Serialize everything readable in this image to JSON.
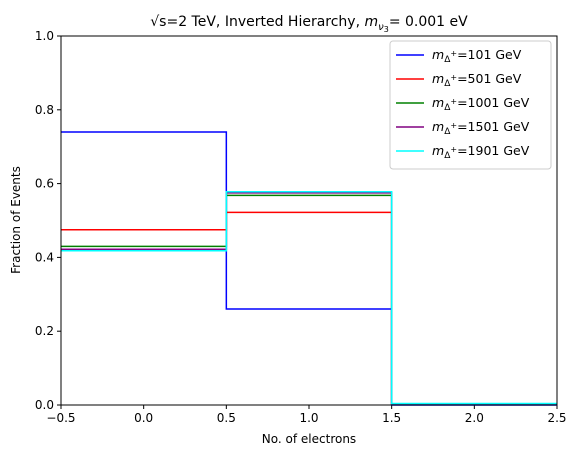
{
  "chart_data": {
    "type": "line",
    "drawstyle": "steps",
    "title": "√s=2 TeV, Inverted Hierarchy, m_ν3= 0.001 eV",
    "title_parts": {
      "prefix": "√s",
      "mid": "=2 TeV, Inverted Hierarchy, ",
      "mass_base": "m",
      "mass_sub": "ν",
      "mass_subsub": "3",
      "suffix": "= 0.001 eV"
    },
    "xlabel": "No. of electrons",
    "ylabel": "Fraction of Events",
    "xlim": [
      -0.5,
      2.5
    ],
    "ylim": [
      0.0,
      1.0
    ],
    "xticks": [
      -0.5,
      0.0,
      0.5,
      1.0,
      1.5,
      2.0,
      2.5
    ],
    "xtick_labels": [
      "−0.5",
      "0.0",
      "0.5",
      "1.0",
      "1.5",
      "2.0",
      "2.5"
    ],
    "yticks": [
      0.0,
      0.2,
      0.4,
      0.6,
      0.8,
      1.0
    ],
    "ytick_labels": [
      "0.0",
      "0.2",
      "0.4",
      "0.6",
      "0.8",
      "1.0"
    ],
    "bin_edges": [
      -0.5,
      0.5,
      1.5,
      2.5
    ],
    "legend_position": "top-right",
    "grid": false,
    "series": [
      {
        "name": "m_Δ+=101 GeV",
        "label_value": "=101 GeV",
        "color": "#0000ff",
        "values": [
          0.74,
          0.26,
          0.0
        ]
      },
      {
        "name": "m_Δ+=501 GeV",
        "label_value": "=501 GeV",
        "color": "#ff0000",
        "values": [
          0.475,
          0.522,
          0.003
        ]
      },
      {
        "name": "m_Δ+=1001 GeV",
        "label_value": "=1001 GeV",
        "color": "#008000",
        "values": [
          0.43,
          0.568,
          0.002
        ]
      },
      {
        "name": "m_Δ+=1501 GeV",
        "label_value": "=1501 GeV",
        "color": "#800080",
        "values": [
          0.422,
          0.575,
          0.003
        ]
      },
      {
        "name": "m_Δ+=1901 GeV",
        "label_value": "=1901 GeV",
        "color": "#00ffff",
        "values": [
          0.418,
          0.578,
          0.004
        ]
      }
    ],
    "legend_symbol": {
      "base": "m",
      "sub": "Δ",
      "sup": "+"
    }
  }
}
